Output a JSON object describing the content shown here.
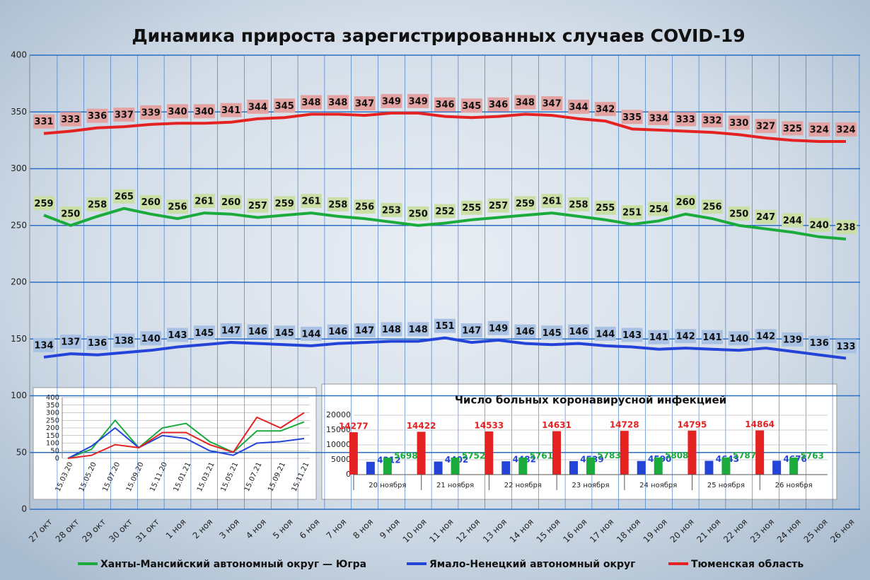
{
  "chart_data": [
    {
      "type": "line",
      "title": "Динамика прироста зарегистрированных случаев COVID-19",
      "categories": [
        "27 окт",
        "28 окт",
        "29 окт",
        "30 окт",
        "31 окт",
        "1 ноя",
        "2 ноя",
        "3 ноя",
        "4 ноя",
        "5 ноя",
        "6 ноя",
        "7 ноя",
        "8 ноя",
        "9 ноя",
        "10 ноя",
        "11 ноя",
        "12 ноя",
        "13 ноя",
        "14 ноя",
        "15 ноя",
        "16 ноя",
        "17 ноя",
        "18 ноя",
        "19 ноя",
        "20 ноя",
        "21 ноя",
        "22 ноя",
        "23 ноя",
        "24 ноя",
        "25 ноя",
        "26 ноя"
      ],
      "series": [
        {
          "name": "Ханты-Мансийский автономный округ — Югра",
          "color": "#1aab3c",
          "label_color": "#c9dfa6",
          "values": [
            259,
            250,
            258,
            265,
            260,
            256,
            261,
            260,
            257,
            259,
            261,
            258,
            256,
            253,
            250,
            252,
            255,
            257,
            259,
            261,
            258,
            255,
            251,
            254,
            260,
            256,
            250,
            247,
            244,
            240,
            238
          ]
        },
        {
          "name": "Ямало-Ненецкий автономный округ",
          "color": "#2443d8",
          "label_color": "#a9c2e4",
          "values": [
            134,
            137,
            136,
            138,
            140,
            143,
            145,
            147,
            146,
            145,
            144,
            146,
            147,
            148,
            148,
            151,
            147,
            149,
            146,
            145,
            146,
            144,
            143,
            141,
            142,
            141,
            140,
            142,
            139,
            136,
            133
          ]
        },
        {
          "name": "Тюменская область",
          "color": "#e52222",
          "label_color": "#e4a3a3",
          "values": [
            331,
            333,
            336,
            337,
            339,
            340,
            340,
            341,
            344,
            345,
            348,
            348,
            347,
            349,
            349,
            346,
            345,
            346,
            348,
            347,
            344,
            342,
            335,
            334,
            333,
            332,
            330,
            327,
            325,
            324,
            324
          ]
        }
      ],
      "ylim": [
        0,
        400
      ],
      "yticks": [
        0,
        50,
        100,
        150,
        200,
        250,
        300,
        350,
        400
      ],
      "grid": true,
      "data_labels": true,
      "legend": "bottom"
    },
    {
      "type": "line",
      "x": [
        "15.03.20",
        "15.05.20",
        "15.07.20",
        "15.09.20",
        "15.11.20",
        "15.01.21",
        "15.03.21",
        "15.05.21",
        "15.07.21",
        "15.09.21",
        "15.11.21"
      ],
      "series": [
        {
          "color": "#1aab3c",
          "values": [
            0,
            60,
            250,
            70,
            200,
            230,
            110,
            40,
            180,
            180,
            240
          ]
        },
        {
          "color": "#2443d8",
          "values": [
            0,
            80,
            200,
            70,
            150,
            130,
            50,
            20,
            100,
            110,
            130
          ]
        },
        {
          "color": "#e52222",
          "values": [
            0,
            20,
            90,
            70,
            170,
            170,
            90,
            40,
            270,
            200,
            300
          ]
        }
      ],
      "ylim": [
        0,
        400
      ],
      "yticks": [
        0,
        50,
        100,
        150,
        200,
        250,
        300,
        350,
        400
      ],
      "grid": true
    },
    {
      "type": "bar",
      "title": "Число больных  коронавирусной  инфекцией",
      "categories": [
        "20 ноября",
        "21 ноября",
        "22 ноября",
        "23 ноября",
        "24 ноября",
        "25 ноября",
        "26 ноября"
      ],
      "series": [
        {
          "color": "#e52222",
          "values": [
            14277,
            14422,
            14533,
            14631,
            14728,
            14795,
            14864
          ]
        },
        {
          "color": "#2443d8",
          "values": [
            4312,
            4402,
            4482,
            4539,
            4590,
            4643,
            4676
          ]
        },
        {
          "color": "#1aab3c",
          "values": [
            5698,
            5752,
            5761,
            5783,
            5808,
            5787,
            5763
          ]
        }
      ],
      "ylim": [
        0,
        20000
      ],
      "yticks": [
        0,
        5000,
        10000,
        15000,
        20000
      ],
      "grid": true,
      "data_labels": true
    }
  ]
}
